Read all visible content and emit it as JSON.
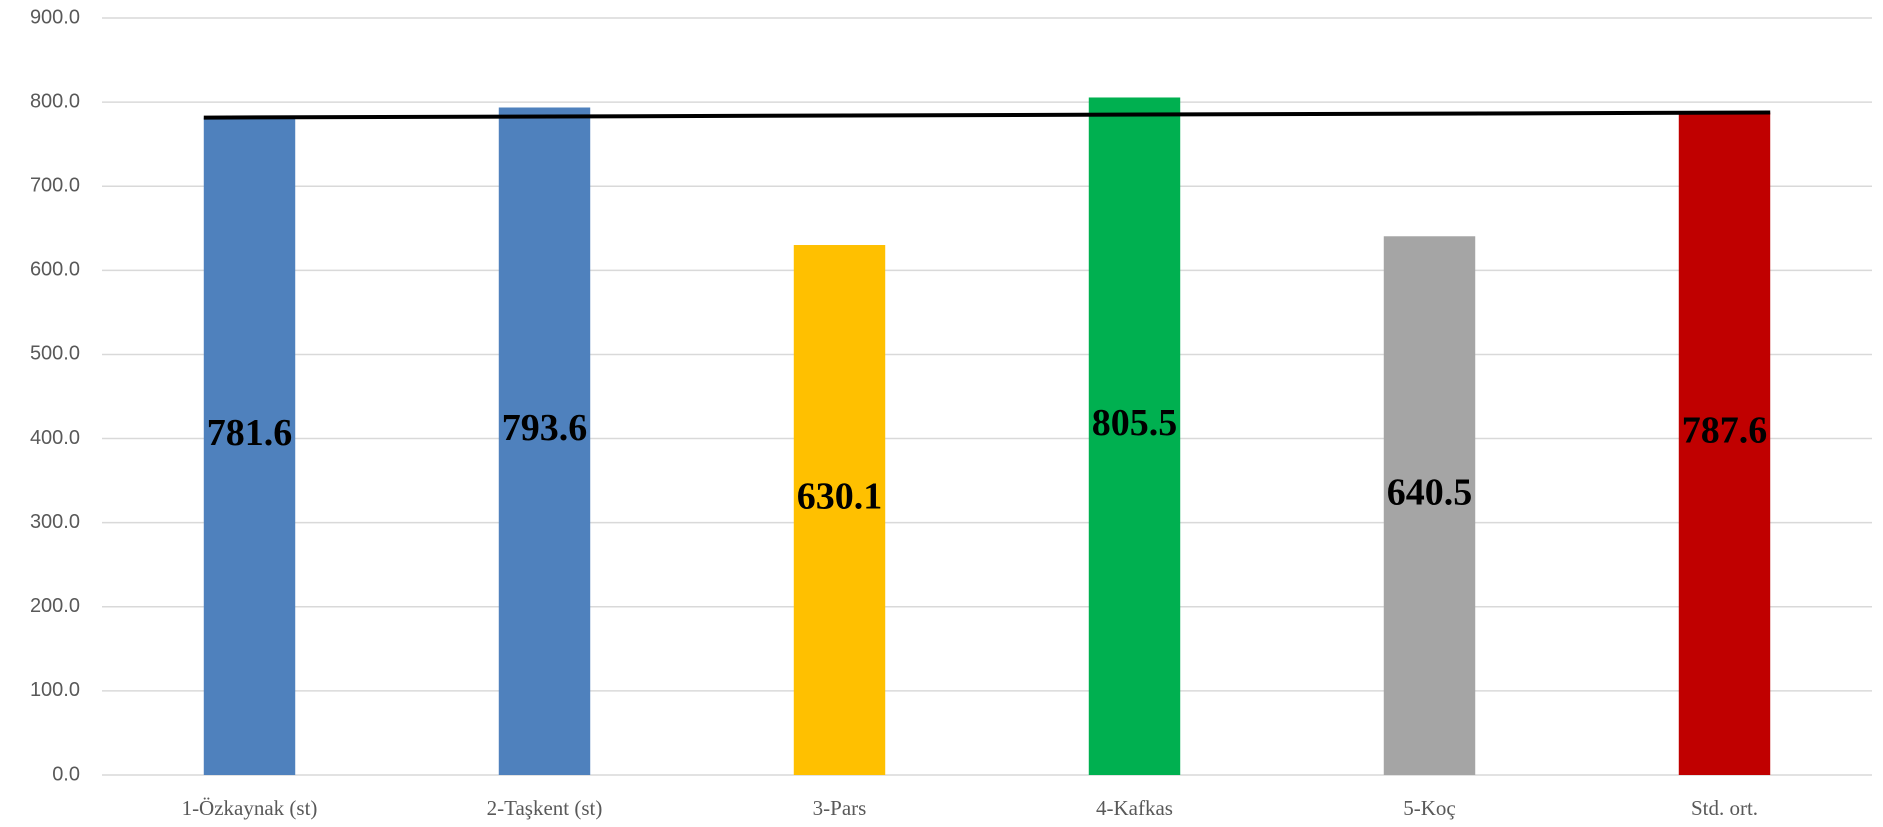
{
  "chart_data": {
    "type": "bar",
    "categories": [
      "1-Özkaynak (st)",
      "2-Taşkent (st)",
      "3-Pars",
      "4-Kafkas",
      "5-Koç",
      "Std. ort."
    ],
    "values": [
      781.6,
      793.6,
      630.1,
      805.5,
      640.5,
      787.6
    ],
    "colors": [
      "#4f81bd",
      "#4f81bd",
      "#ffc000",
      "#00b050",
      "#a5a5a5",
      "#c00000"
    ],
    "ylim": [
      0,
      900
    ],
    "yticks": [
      {
        "value": 0,
        "label": "0.0"
      },
      {
        "value": 100,
        "label": "100.0"
      },
      {
        "value": 200,
        "label": "200.0"
      },
      {
        "value": 300,
        "label": "300.0"
      },
      {
        "value": 400,
        "label": "400.0"
      },
      {
        "value": 500,
        "label": "500.0"
      },
      {
        "value": 600,
        "label": "600.0"
      },
      {
        "value": 700,
        "label": "700.0"
      },
      {
        "value": 800,
        "label": "800.0"
      },
      {
        "value": 900,
        "label": "900.0"
      }
    ],
    "grid": true
  }
}
